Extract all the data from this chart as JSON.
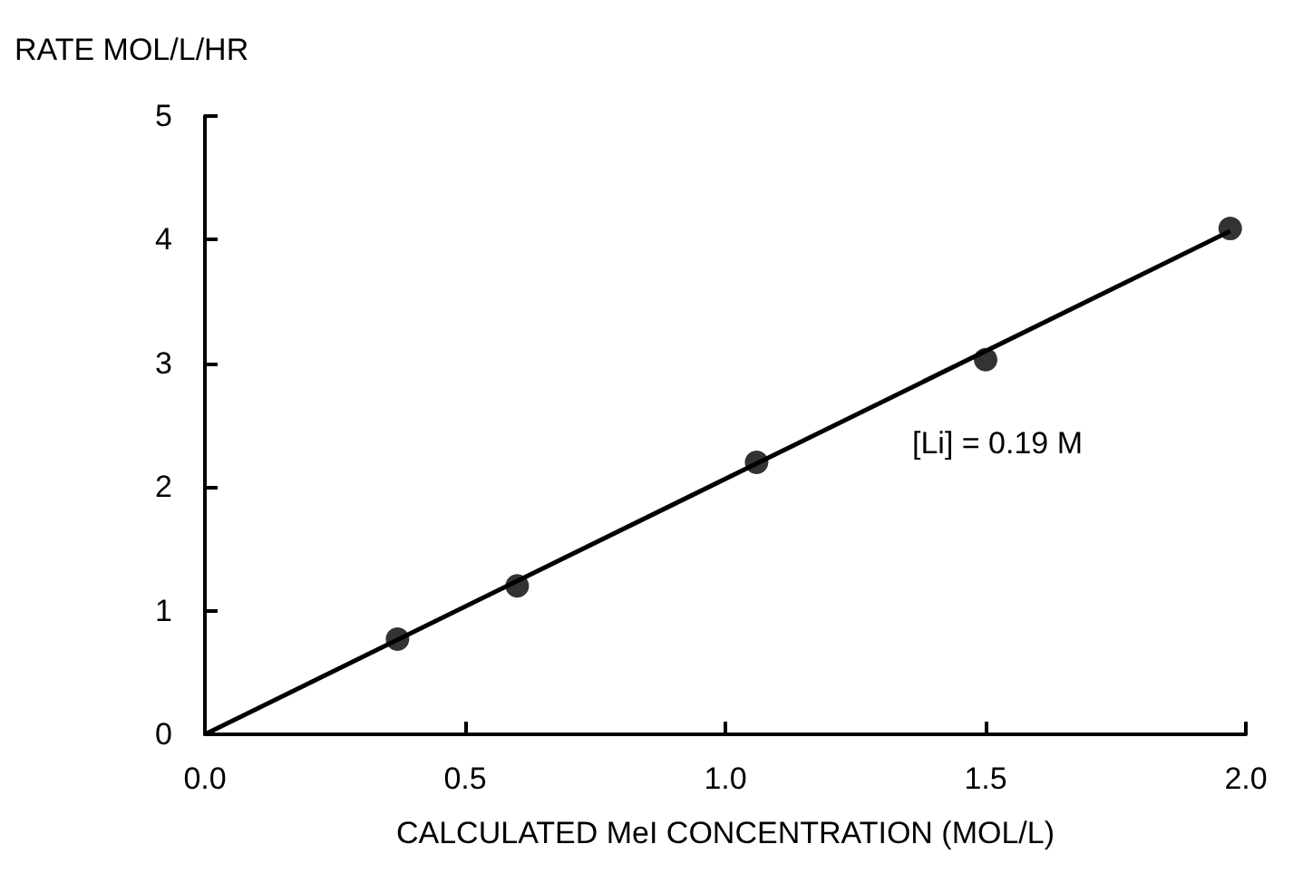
{
  "chart_data": {
    "type": "scatter",
    "xlabel": "CALCULATED MeI CONCENTRATION (MOL/L)",
    "ylabel": "RATE MOL/L/HR",
    "x": [
      0.37,
      0.6,
      1.06,
      1.5,
      1.97
    ],
    "values": [
      0.77,
      1.2,
      2.2,
      3.03,
      4.09
    ],
    "color": "#000000",
    "marker": "circle",
    "series": [
      {
        "type": "line",
        "x": [
          0,
          1.97
        ],
        "values": [
          0,
          4.07
        ],
        "color": "#000000",
        "marker": "none"
      }
    ],
    "xlim": [
      0,
      2.0
    ],
    "xticks": [
      {
        "value": 0,
        "label": "0.0"
      },
      0.5,
      {
        "value": 1,
        "label": "1.0"
      },
      1.5,
      {
        "value": 2,
        "label": "2.0"
      }
    ],
    "ylim": [
      0,
      5
    ],
    "yticks": [
      0,
      1,
      2,
      3,
      4,
      5
    ],
    "grid": false,
    "annotations": [
      "[Li] = 0.19 M"
    ]
  }
}
